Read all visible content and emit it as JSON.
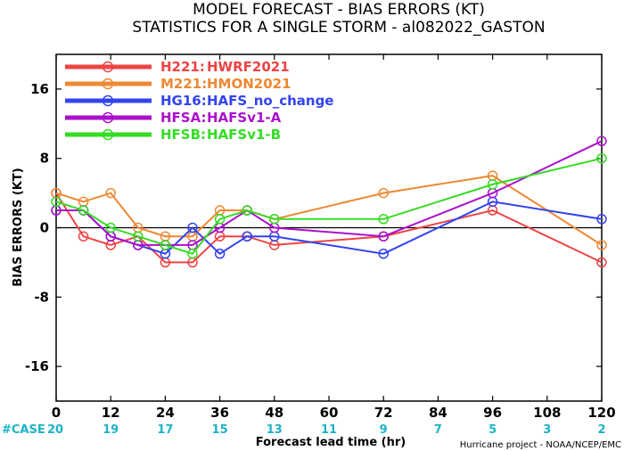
{
  "chart_data": {
    "type": "line",
    "title": "MODEL FORECAST - BIAS ERRORS (KT)",
    "subtitle": "STATISTICS FOR A SINGLE STORM - al082022_GASTON",
    "xlabel": "Forecast lead time (hr)",
    "ylabel": "BIAS ERRORS (KT)",
    "xlim": [
      0,
      120
    ],
    "ylim": [
      -20,
      20
    ],
    "x_ticks": [
      0,
      12,
      24,
      36,
      48,
      60,
      72,
      84,
      96,
      108,
      120
    ],
    "x_tick_labels": [
      "0",
      "12",
      "24",
      "36",
      "48",
      "60",
      "72",
      "84",
      "96",
      "108",
      "120"
    ],
    "y_ticks": [
      -16,
      -8,
      0,
      8,
      16
    ],
    "y_tick_labels": [
      "-16",
      "-8",
      "0",
      "8",
      "16"
    ],
    "zero_line": true,
    "grid": false,
    "legend_position": "top-left",
    "case_label": "#CASE",
    "case_counts": [
      "20",
      "19",
      "17",
      "15",
      "13",
      "11",
      "9",
      "7",
      "5",
      "3",
      "2"
    ],
    "credit": "Hurricane project - NOAA/NCEP/EMC",
    "series": [
      {
        "name": "H221:",
        "desc": "HWRF2021",
        "color": "#ee4444",
        "x": [
          0,
          6,
          12,
          18,
          24,
          30,
          36,
          42,
          48,
          72,
          96,
          120
        ],
        "y": [
          4,
          -1,
          -2,
          -1,
          -4,
          -4,
          -1,
          -1,
          -2,
          -1,
          2,
          -4
        ]
      },
      {
        "name": "M221:",
        "desc": "HMON2021",
        "color": "#ee8833",
        "x": [
          0,
          6,
          12,
          18,
          24,
          30,
          36,
          42,
          48,
          72,
          96,
          120
        ],
        "y": [
          4,
          3,
          4,
          0,
          -1,
          -1,
          2,
          2,
          1,
          4,
          6,
          -2
        ]
      },
      {
        "name": "HG16:",
        "desc": "HAFS_no_change",
        "color": "#3344ee",
        "x": [
          0,
          6,
          12,
          18,
          24,
          30,
          36,
          42,
          48,
          72,
          96,
          120
        ],
        "y": [
          2,
          2,
          -1,
          -2,
          -3,
          0,
          -3,
          -1,
          -1,
          -3,
          3,
          1
        ]
      },
      {
        "name": "HFSA:",
        "desc": "HAFSv1-A",
        "color": "#aa11cc",
        "x": [
          0,
          6,
          12,
          18,
          24,
          30,
          36,
          42,
          48,
          72,
          96,
          120
        ],
        "y": [
          2,
          2,
          -1,
          -2,
          -2,
          -2,
          0,
          2,
          0,
          -1,
          4,
          10
        ]
      },
      {
        "name": "HFSB:",
        "desc": "HAFSv1-B",
        "color": "#33dd22",
        "x": [
          0,
          6,
          12,
          18,
          24,
          30,
          36,
          42,
          48,
          72,
          96,
          120
        ],
        "y": [
          3,
          2,
          0,
          -1,
          -2,
          -3,
          1,
          2,
          1,
          1,
          5,
          8
        ]
      }
    ]
  }
}
